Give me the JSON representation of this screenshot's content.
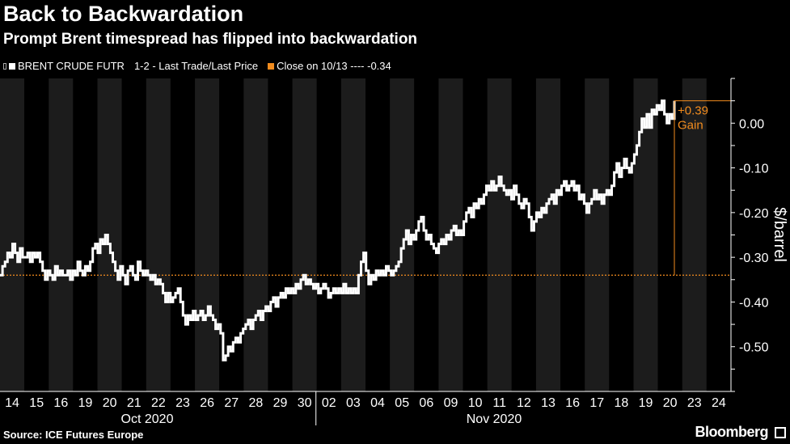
{
  "title": "Back to Backwardation",
  "subtitle": "Prompt Brent timespread has flipped into backwardation",
  "legend": {
    "series_label": "BRENT CRUDE FUTR",
    "series_detail": "1-2 - Last Trade/Last Price",
    "ref_label": "Close on 10/13 ---- -0.34",
    "series_color": "#ffffff",
    "ref_color": "#f28c1e"
  },
  "source": "Source: ICE Futures Europe",
  "brand": "Bloomberg",
  "chart_data": {
    "type": "line",
    "title": "Back to Backwardation",
    "xlabel": "",
    "ylabel": "$/barrel",
    "ylim": [
      -0.6,
      0.1
    ],
    "yticks": [
      0.0,
      -0.1,
      -0.2,
      -0.3,
      -0.4,
      -0.5
    ],
    "ytick_labels": [
      "0.00",
      "-0.10",
      "-0.20",
      "-0.30",
      "-0.40",
      "-0.50"
    ],
    "grid": false,
    "day_labels": [
      "14",
      "15",
      "16",
      "19",
      "20",
      "21",
      "22",
      "23",
      "26",
      "27",
      "28",
      "29",
      "30",
      "02",
      "03",
      "04",
      "05",
      "06",
      "09",
      "10",
      "11",
      "12",
      "13",
      "16",
      "17",
      "18",
      "19",
      "20",
      "23",
      "24"
    ],
    "month_labels": [
      "Oct 2020",
      "Nov 2020"
    ],
    "reference_line": {
      "value": -0.34,
      "label": "Close on 10/13"
    },
    "annotation": {
      "value_text": "+0.39",
      "text": "Gain"
    },
    "series": [
      {
        "name": "BRENT CRUDE FUTR 1-2",
        "values": [
          -0.34,
          -0.32,
          -0.31,
          -0.29,
          -0.3,
          -0.27,
          -0.29,
          -0.31,
          -0.28,
          -0.3,
          -0.3,
          -0.29,
          -0.31,
          -0.29,
          -0.3,
          -0.29,
          -0.31,
          -0.33,
          -0.35,
          -0.33,
          -0.34,
          -0.35,
          -0.32,
          -0.34,
          -0.33,
          -0.34,
          -0.34,
          -0.33,
          -0.35,
          -0.33,
          -0.34,
          -0.31,
          -0.33,
          -0.34,
          -0.32,
          -0.33,
          -0.31,
          -0.28,
          -0.27,
          -0.29,
          -0.26,
          -0.27,
          -0.25,
          -0.27,
          -0.29,
          -0.31,
          -0.33,
          -0.35,
          -0.32,
          -0.34,
          -0.36,
          -0.33,
          -0.32,
          -0.34,
          -0.35,
          -0.31,
          -0.33,
          -0.34,
          -0.33,
          -0.34,
          -0.35,
          -0.34,
          -0.36,
          -0.35,
          -0.36,
          -0.38,
          -0.4,
          -0.38,
          -0.4,
          -0.39,
          -0.38,
          -0.37,
          -0.4,
          -0.43,
          -0.45,
          -0.43,
          -0.44,
          -0.42,
          -0.44,
          -0.43,
          -0.42,
          -0.44,
          -0.43,
          -0.41,
          -0.43,
          -0.44,
          -0.46,
          -0.45,
          -0.47,
          -0.53,
          -0.52,
          -0.5,
          -0.51,
          -0.49,
          -0.48,
          -0.49,
          -0.47,
          -0.46,
          -0.45,
          -0.44,
          -0.46,
          -0.44,
          -0.43,
          -0.42,
          -0.44,
          -0.42,
          -0.41,
          -0.42,
          -0.4,
          -0.39,
          -0.41,
          -0.39,
          -0.38,
          -0.39,
          -0.37,
          -0.38,
          -0.37,
          -0.38,
          -0.36,
          -0.37,
          -0.35,
          -0.34,
          -0.36,
          -0.35,
          -0.36,
          -0.37,
          -0.36,
          -0.38,
          -0.37,
          -0.36,
          -0.37,
          -0.39,
          -0.38,
          -0.37,
          -0.38,
          -0.37,
          -0.38,
          -0.36,
          -0.38,
          -0.37,
          -0.38,
          -0.37,
          -0.38,
          -0.34,
          -0.31,
          -0.29,
          -0.33,
          -0.36,
          -0.34,
          -0.35,
          -0.33,
          -0.34,
          -0.33,
          -0.34,
          -0.32,
          -0.33,
          -0.34,
          -0.33,
          -0.32,
          -0.31,
          -0.28,
          -0.26,
          -0.24,
          -0.27,
          -0.25,
          -0.26,
          -0.24,
          -0.22,
          -0.21,
          -0.24,
          -0.26,
          -0.25,
          -0.27,
          -0.28,
          -0.29,
          -0.27,
          -0.26,
          -0.27,
          -0.25,
          -0.26,
          -0.24,
          -0.23,
          -0.25,
          -0.24,
          -0.25,
          -0.22,
          -0.2,
          -0.19,
          -0.21,
          -0.18,
          -0.19,
          -0.17,
          -0.18,
          -0.16,
          -0.14,
          -0.15,
          -0.13,
          -0.15,
          -0.14,
          -0.12,
          -0.14,
          -0.15,
          -0.16,
          -0.15,
          -0.17,
          -0.14,
          -0.16,
          -0.18,
          -0.19,
          -0.17,
          -0.18,
          -0.21,
          -0.24,
          -0.22,
          -0.2,
          -0.21,
          -0.19,
          -0.2,
          -0.18,
          -0.17,
          -0.16,
          -0.18,
          -0.15,
          -0.16,
          -0.14,
          -0.13,
          -0.15,
          -0.14,
          -0.13,
          -0.15,
          -0.14,
          -0.17,
          -0.16,
          -0.18,
          -0.2,
          -0.18,
          -0.17,
          -0.15,
          -0.17,
          -0.16,
          -0.18,
          -0.16,
          -0.15,
          -0.16,
          -0.14,
          -0.11,
          -0.09,
          -0.12,
          -0.1,
          -0.08,
          -0.1,
          -0.11,
          -0.09,
          -0.07,
          -0.05,
          -0.02,
          0.01,
          -0.01,
          0.02,
          -0.01,
          0.03,
          0.02,
          0.04,
          0.03,
          0.05,
          0.02,
          0.0,
          0.02,
          0.01,
          0.05
        ]
      }
    ]
  }
}
